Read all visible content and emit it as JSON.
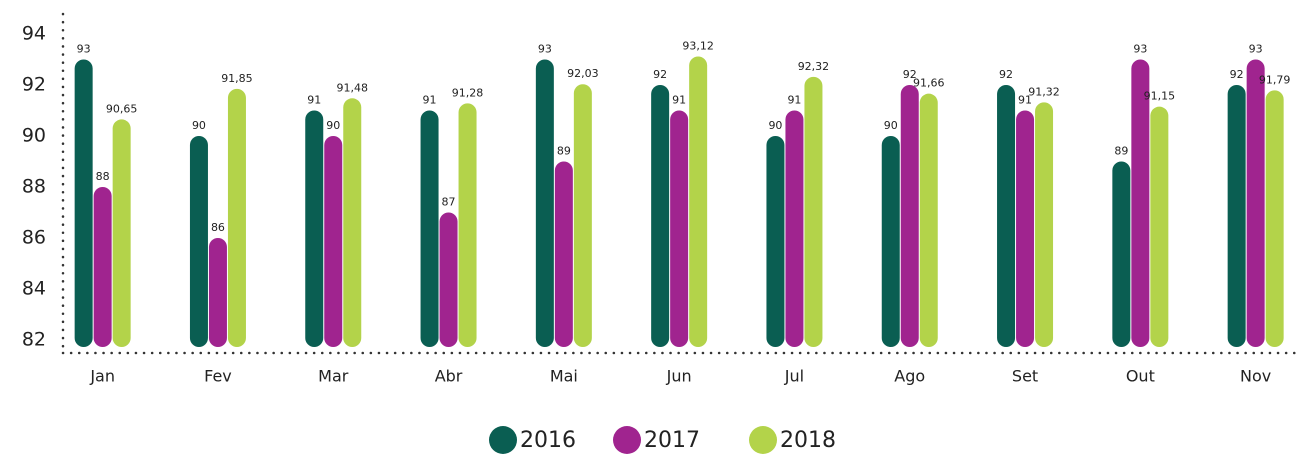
{
  "chart_data": {
    "type": "bar",
    "categories": [
      "Jan",
      "Fev",
      "Mar",
      "Abr",
      "Mai",
      "Jun",
      "Jul",
      "Ago",
      "Set",
      "Out",
      "Nov"
    ],
    "series": [
      {
        "name": "2016",
        "color": "#0a5e52",
        "values": [
          93,
          90,
          91,
          91,
          93,
          92,
          90,
          90,
          92,
          89,
          92
        ]
      },
      {
        "name": "2017",
        "color": "#a0248f",
        "values": [
          88,
          86,
          90,
          87,
          89,
          91,
          91,
          92,
          91,
          93,
          93
        ]
      },
      {
        "name": "2018",
        "color": "#b3d34a",
        "values": [
          90.65,
          91.85,
          91.48,
          91.28,
          92.03,
          93.12,
          92.32,
          91.66,
          91.32,
          91.15,
          91.79
        ],
        "value_labels": [
          "90,65",
          "91,85",
          "91,48",
          "91,28",
          "92,03",
          "93,12",
          "92,32",
          "91,66",
          "91,32",
          "91,15",
          "91,79"
        ]
      }
    ],
    "ylim": [
      82,
      94
    ],
    "yticks": [
      82,
      84,
      86,
      88,
      90,
      92,
      94
    ],
    "legend": "bottom"
  }
}
